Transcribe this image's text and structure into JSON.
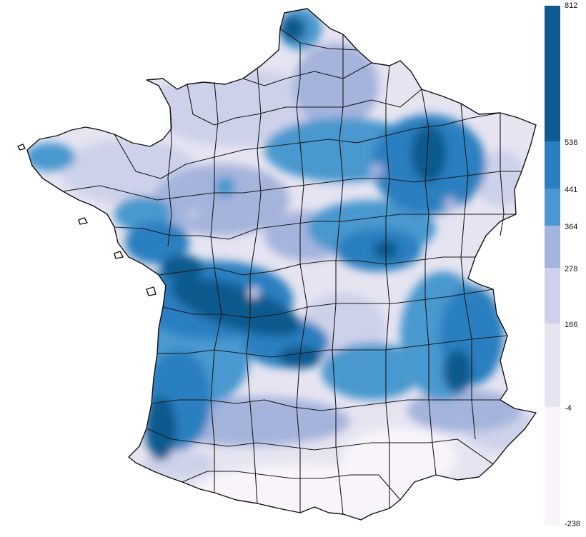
{
  "legend": {
    "labels": [
      "812",
      "536",
      "441",
      "364",
      "278",
      "166",
      "-4",
      "-238"
    ],
    "bins": [
      {
        "from": 536,
        "to": 812,
        "color": "#0f5a8f"
      },
      {
        "from": 441,
        "to": 536,
        "color": "#2a7fc0"
      },
      {
        "from": 364,
        "to": 441,
        "color": "#4a98cf"
      },
      {
        "from": 278,
        "to": 364,
        "color": "#a4b4dd"
      },
      {
        "from": 166,
        "to": 278,
        "color": "#cdd2ea"
      },
      {
        "from": -4,
        "to": 166,
        "color": "#e6e4f1"
      },
      {
        "from": -238,
        "to": -4,
        "color": "#f8f4fa"
      }
    ]
  },
  "map": {
    "region": "France",
    "boundaries": "departments",
    "border_color": "#1a1a1a",
    "background": "#ffffff"
  }
}
